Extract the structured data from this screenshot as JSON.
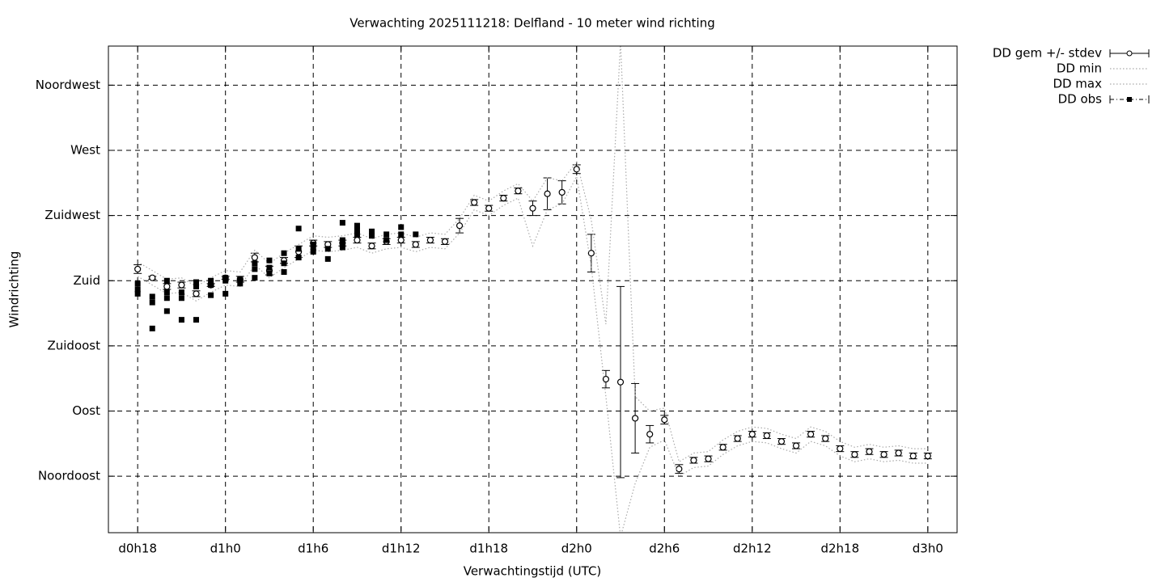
{
  "chart_data": {
    "type": "line",
    "title": "Verwachting 2025111218: Delfland - 10 meter wind richting",
    "x_label": "Verwachtingstijd (UTC)",
    "y_label": "Windrichting",
    "xlim": [
      16,
      74
    ],
    "ylim": [
      6,
      342
    ],
    "xticks": [
      {
        "value": 18,
        "label": "d0h18"
      },
      {
        "value": 24,
        "label": "d1h0"
      },
      {
        "value": 30,
        "label": "d1h6"
      },
      {
        "value": 36,
        "label": "d1h12"
      },
      {
        "value": 42,
        "label": "d1h18"
      },
      {
        "value": 48,
        "label": "d2h0"
      },
      {
        "value": 54,
        "label": "d2h6"
      },
      {
        "value": 60,
        "label": "d2h12"
      },
      {
        "value": 66,
        "label": "d2h18"
      },
      {
        "value": 72,
        "label": "d3h0"
      }
    ],
    "yticks": [
      {
        "value": 45,
        "label": "Noordoost"
      },
      {
        "value": 90,
        "label": "Oost"
      },
      {
        "value": 135,
        "label": "Zuidoost"
      },
      {
        "value": 180,
        "label": "Zuid"
      },
      {
        "value": 225,
        "label": "Zuidwest"
      },
      {
        "value": 270,
        "label": "West"
      },
      {
        "value": 315,
        "label": "Noordwest"
      }
    ],
    "grid": true,
    "legend": "outside-top-right",
    "x": [
      18,
      19,
      20,
      21,
      22,
      23,
      24,
      25,
      26,
      27,
      28,
      29,
      30,
      31,
      32,
      33,
      34,
      35,
      36,
      37,
      38,
      39,
      40,
      41,
      42,
      43,
      44,
      45,
      46,
      47,
      48,
      49,
      50,
      51,
      52,
      53,
      54,
      55,
      56,
      57,
      58,
      59,
      60,
      61,
      62,
      63,
      64,
      65,
      66,
      67,
      68,
      69,
      70,
      71,
      72
    ],
    "series": [
      {
        "name": "DD gem +/- stdev",
        "color": "#000000",
        "style": "errorbars",
        "values": [
          188,
          182,
          176,
          177,
          171,
          177,
          182,
          181,
          196,
          187,
          194,
          200,
          206,
          205,
          206,
          208,
          204,
          207,
          208,
          205,
          208,
          207,
          218,
          234,
          230,
          237,
          242,
          230,
          240,
          241,
          257,
          199,
          112,
          110,
          85,
          74,
          84,
          50,
          56,
          57,
          65,
          71,
          74,
          73,
          69,
          66,
          74,
          71,
          64,
          60,
          62,
          60,
          61,
          59,
          59
        ],
        "errors": [
          3,
          1,
          2,
          2,
          2,
          1,
          1,
          2,
          3,
          3,
          2,
          4,
          2,
          2,
          2,
          2,
          2,
          2,
          2,
          2,
          2,
          2,
          5,
          2,
          2,
          2,
          2,
          5,
          11,
          8,
          3,
          13,
          6,
          66,
          24,
          6,
          3,
          3,
          2,
          2,
          2,
          2,
          2,
          2,
          2,
          2,
          2,
          2,
          2,
          2,
          2,
          2,
          2,
          2,
          2
        ]
      },
      {
        "name": "DD min",
        "color": "#aaaaaa",
        "style": "dotted",
        "values": [
          183,
          177,
          171,
          172,
          166,
          172,
          177,
          176,
          191,
          182,
          189,
          195,
          201,
          200,
          201,
          203,
          199,
          202,
          203,
          200,
          203,
          202,
          213,
          229,
          225,
          232,
          237,
          204,
          229,
          233,
          252,
          190,
          100,
          3,
          40,
          65,
          70,
          45,
          51,
          52,
          60,
          66,
          69,
          68,
          64,
          61,
          69,
          66,
          59,
          55,
          57,
          55,
          56,
          54,
          54
        ]
      },
      {
        "name": "DD max",
        "color": "#aaaaaa",
        "style": "dotted",
        "values": [
          193,
          187,
          181,
          182,
          176,
          182,
          187,
          186,
          201,
          192,
          199,
          205,
          211,
          210,
          211,
          213,
          209,
          212,
          213,
          210,
          213,
          212,
          223,
          239,
          235,
          242,
          247,
          235,
          251,
          249,
          262,
          222,
          150,
          345,
          100,
          90,
          92,
          55,
          61,
          62,
          70,
          76,
          79,
          78,
          74,
          71,
          79,
          76,
          69,
          65,
          67,
          65,
          66,
          64,
          64
        ]
      },
      {
        "name": "DD obs",
        "color": "#000000",
        "style": "points",
        "x": [
          18,
          18,
          18,
          19,
          19,
          19,
          20,
          20,
          20,
          20,
          21,
          21,
          21,
          22,
          22,
          22,
          23,
          23,
          23,
          24,
          24,
          24,
          25,
          25,
          26,
          26,
          26,
          27,
          27,
          27,
          28,
          28,
          28,
          29,
          29,
          29,
          30,
          30,
          30,
          31,
          31,
          32,
          32,
          32,
          32,
          33,
          33,
          33,
          34,
          34,
          35,
          35,
          36,
          36,
          37
        ],
        "values": [
          178,
          174,
          171,
          169,
          165,
          147,
          180,
          172,
          168,
          159,
          172,
          168,
          153,
          179,
          176,
          153,
          180,
          177,
          170,
          182,
          180,
          171,
          181,
          178,
          192,
          188,
          182,
          194,
          189,
          185,
          199,
          192,
          186,
          216,
          202,
          196,
          205,
          203,
          200,
          202,
          195,
          220,
          208,
          205,
          203,
          218,
          215,
          212,
          214,
          211,
          212,
          208,
          217,
          212,
          212
        ]
      }
    ]
  }
}
